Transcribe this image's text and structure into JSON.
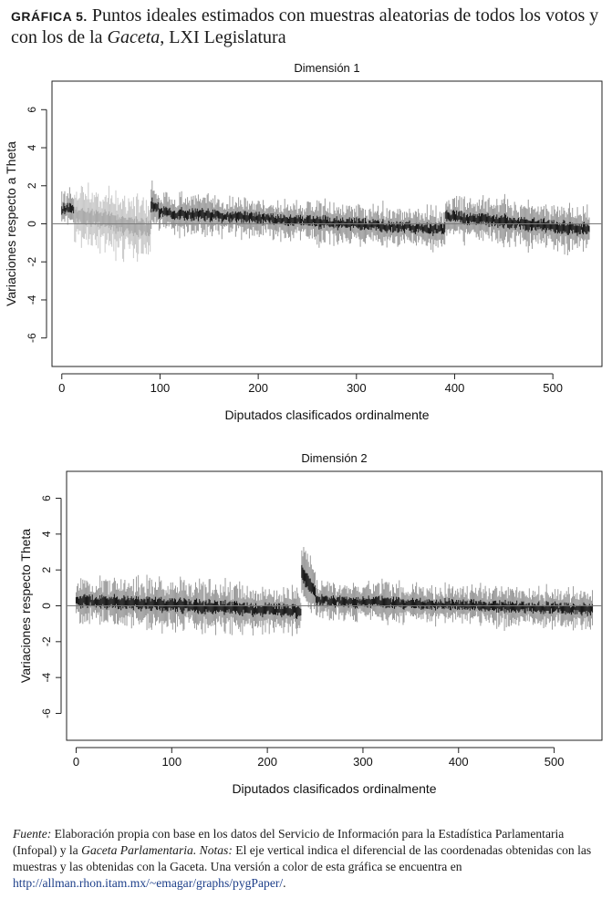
{
  "figure": {
    "label": "GRÁFICA 5.",
    "title_pre": "Puntos ideales estimados con muestras aleatorias de todos los votos y con los de la",
    "title_italic": "Gaceta",
    "title_post": ", LXI Legislatura"
  },
  "chart_data": [
    {
      "type": "scatter",
      "title": "Dimensión 1",
      "xlabel": "Diputados clasificados ordinalmente",
      "ylabel": "Variaciones respecto a Theta",
      "xlim": [
        -10,
        550
      ],
      "ylim": [
        -7.5,
        7.5
      ],
      "xticks": [
        0,
        100,
        200,
        300,
        400,
        500
      ],
      "yticks": [
        -6,
        -4,
        -2,
        0,
        2,
        4,
        6
      ],
      "reference_line": 0,
      "segments": [
        {
          "x": [
            0,
            12
          ],
          "value": [
            0.8,
            0.7
          ],
          "spread": 0.7,
          "shade": "dark"
        },
        {
          "x": [
            13,
            90
          ],
          "value": [
            0.5,
            -0.3
          ],
          "spread": 1.3,
          "shade": "light"
        },
        {
          "x": [
            91,
            98
          ],
          "value": [
            1.0,
            0.9
          ],
          "spread": 0.9,
          "shade": "dark"
        },
        {
          "x": [
            99,
            390
          ],
          "value": [
            0.6,
            -0.3
          ],
          "spread": 0.8,
          "shade": "dark"
        },
        {
          "x": [
            391,
            537
          ],
          "value": [
            0.4,
            -0.3
          ],
          "spread": 0.9,
          "shade": "dark"
        }
      ]
    },
    {
      "type": "scatter",
      "title": "Dimensión 2",
      "xlabel": "Diputados clasificados ordinalmente",
      "ylabel": "Variaciones respecto Theta",
      "xlim": [
        -10,
        550
      ],
      "ylim": [
        -7.5,
        7.5
      ],
      "xticks": [
        0,
        100,
        200,
        300,
        400,
        500
      ],
      "yticks": [
        -6,
        -4,
        -2,
        0,
        2,
        4,
        6
      ],
      "reference_line": 0,
      "segments": [
        {
          "x": [
            0,
            235
          ],
          "value": [
            0.3,
            -0.3
          ],
          "spread": 1.0,
          "shade": "dark"
        },
        {
          "x": [
            236,
            250
          ],
          "value": [
            1.8,
            0.8
          ],
          "spread": 1.2,
          "shade": "dark"
        },
        {
          "x": [
            251,
            540
          ],
          "value": [
            0.3,
            -0.2
          ],
          "spread": 0.8,
          "shade": "dark"
        }
      ]
    }
  ],
  "footer": {
    "fuente_label": "Fuente:",
    "fuente_text": " Elaboración propia con base en los datos del Servicio de Información para la Estadística Parlamentaria (Infopal) y la ",
    "gaceta": "Gaceta Parlamentaria",
    "period": ". ",
    "notas_label": "Notas:",
    "notas_text": " El eje vertical indica el diferencial de las coordenadas obtenidas con las muestras y las obtenidas con la Gaceta. Una versión a color de esta gráfica se encuentra en ",
    "url": "http://allman.rhon.itam.mx/~emagar/graphs/pygPaper/",
    "end": "."
  }
}
